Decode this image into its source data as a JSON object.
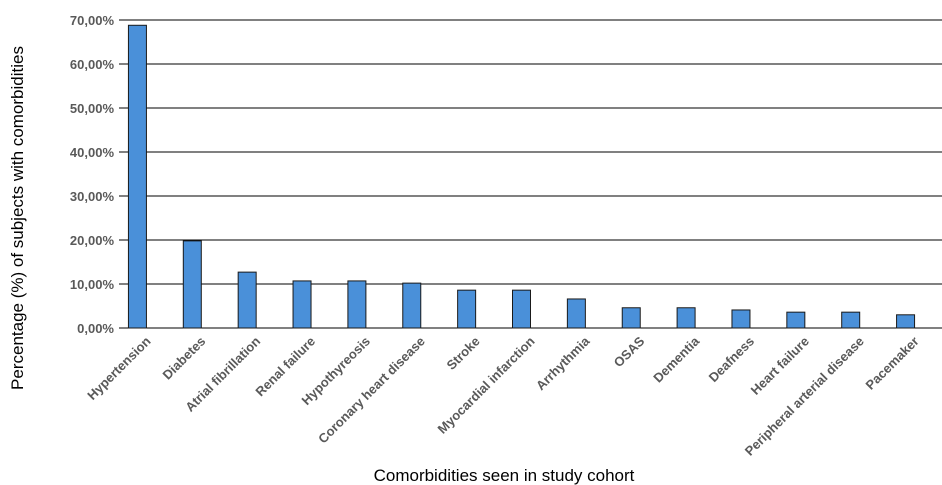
{
  "chart_data": {
    "type": "bar",
    "title": "",
    "xlabel": "Comorbidities seen in study cohort",
    "ylabel": "Percentage (%) of subjects with comorbidities",
    "categories": [
      "Hypertension",
      "Diabetes",
      "Atrial fibrillation",
      "Renal failure",
      "Hypothyreosis",
      "Coronary heart disease",
      "Stroke",
      "Myocardial infarction",
      "Arrhythmia",
      "OSAS",
      "Dementia",
      "Deafness",
      "Heart failure",
      "Peripheral arterial disease",
      "Pacemaker"
    ],
    "values": [
      68.8,
      19.8,
      12.7,
      10.7,
      10.7,
      10.2,
      8.6,
      8.6,
      6.6,
      4.6,
      4.6,
      4.1,
      3.6,
      3.6,
      3.0
    ],
    "ylim": [
      0,
      70
    ],
    "yticks": [
      0,
      10,
      20,
      30,
      40,
      50,
      60,
      70
    ],
    "ytick_labels": [
      "0,00%",
      "10,00%",
      "20,00%",
      "30,00%",
      "40,00%",
      "50,00%",
      "60,00%",
      "70,00%"
    ],
    "grid": true,
    "legend": "none",
    "bar_color": "#4a90d9"
  }
}
